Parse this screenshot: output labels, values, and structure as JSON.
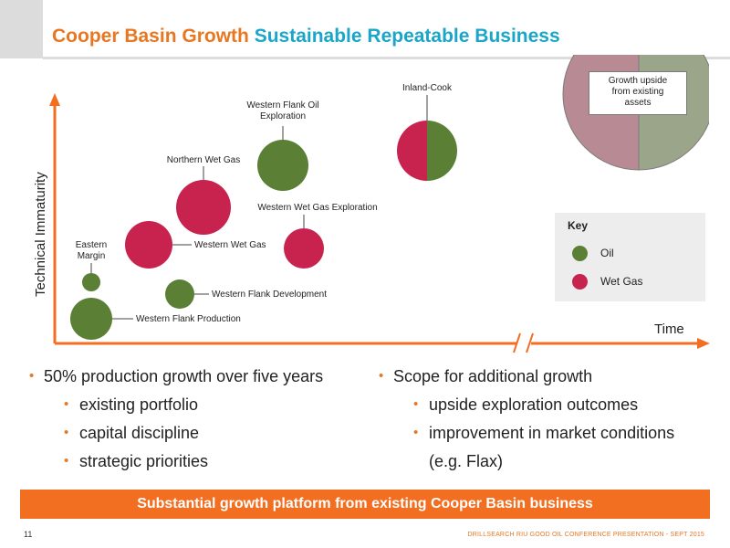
{
  "title": {
    "part1": "Cooper Basin Growth",
    "part2": "Sustainable Repeatable Business"
  },
  "colors": {
    "orange": "#e87722",
    "blue": "#1aa6c8",
    "oil": "#5b7f35",
    "wet_gas": "#c8234f",
    "axis": "#f26f21"
  },
  "axes": {
    "y_label": "Technical Immaturity",
    "x_label": "Time"
  },
  "bubbles": {
    "western_flank_production": "Western Flank Production",
    "eastern_margin_line1": "Eastern",
    "eastern_margin_line2": "Margin",
    "western_flank_development": "Western Flank Development",
    "western_wet_gas": "Western Wet Gas",
    "northern_wet_gas": "Northern Wet Gas",
    "western_flank_oil_line1": "Western Flank  Oil",
    "western_flank_oil_line2": "Exploration",
    "western_wet_gas_exploration": "Western Wet Gas Exploration",
    "inland_cook": "Inland-Cook"
  },
  "upside": {
    "line1": "Growth upside",
    "line2": "from existing",
    "line3": "assets"
  },
  "key": {
    "title": "Key",
    "oil": "Oil",
    "wet_gas": "Wet Gas"
  },
  "bullets_left": {
    "main": "50% production growth over five years",
    "sub1": "existing portfolio",
    "sub2": "capital discipline",
    "sub3": "strategic priorities"
  },
  "bullets_right": {
    "main": "Scope for additional growth",
    "sub1": "upside exploration outcomes",
    "sub2": "improvement in market conditions",
    "sub2_cont": "(e.g. Flax)"
  },
  "banner": "Substantial growth platform from existing Cooper Basin business",
  "footer": {
    "page_number": "11",
    "right_text": "DRILLSEARCH  RIU GOOD OIL CONFERENCE PRESENTATION - SEPT 2015"
  }
}
